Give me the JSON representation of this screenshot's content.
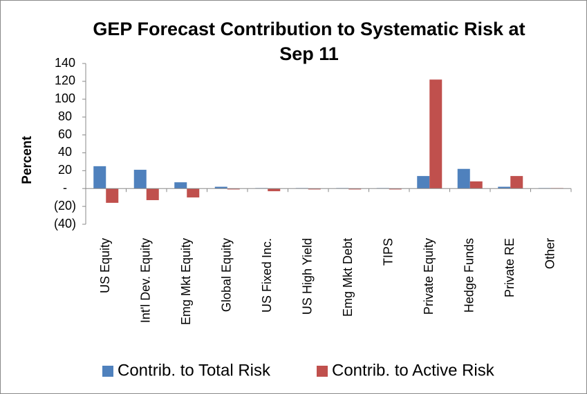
{
  "chart_data": {
    "type": "bar",
    "title": "GEP Forecast Contribution to Systematic Risk at Sep 11",
    "y_label": "Percent",
    "categories": [
      "US Equity",
      "Int'l Dev. Equity",
      "Emg Mkt Equity",
      "Global Equity",
      "US Fixed Inc.",
      "US High Yield",
      "Emg Mkt Debt",
      "TIPS",
      "Private Equity",
      "Hedge Funds",
      "Private RE",
      "Other"
    ],
    "series": [
      {
        "name": "Contrib. to Total Risk",
        "color": "#4f81bd",
        "values": [
          25,
          21,
          7,
          2,
          0.5,
          0.5,
          0.5,
          0.5,
          14,
          22,
          2,
          0.5
        ]
      },
      {
        "name": "Contrib. to Active Risk",
        "color": "#c0504d",
        "values": [
          -16,
          -13,
          -10,
          -1,
          -3,
          -1,
          -1,
          -1,
          122,
          8,
          14,
          0.5
        ]
      }
    ],
    "ylim": [
      -40,
      140
    ],
    "yticks": [
      {
        "value": -40,
        "label": "(40)"
      },
      {
        "value": -20,
        "label": "(20)"
      },
      {
        "value": 0,
        "label": "-"
      },
      20,
      40,
      60,
      80,
      100,
      120,
      140
    ],
    "grid": false,
    "legend": "bottom"
  }
}
